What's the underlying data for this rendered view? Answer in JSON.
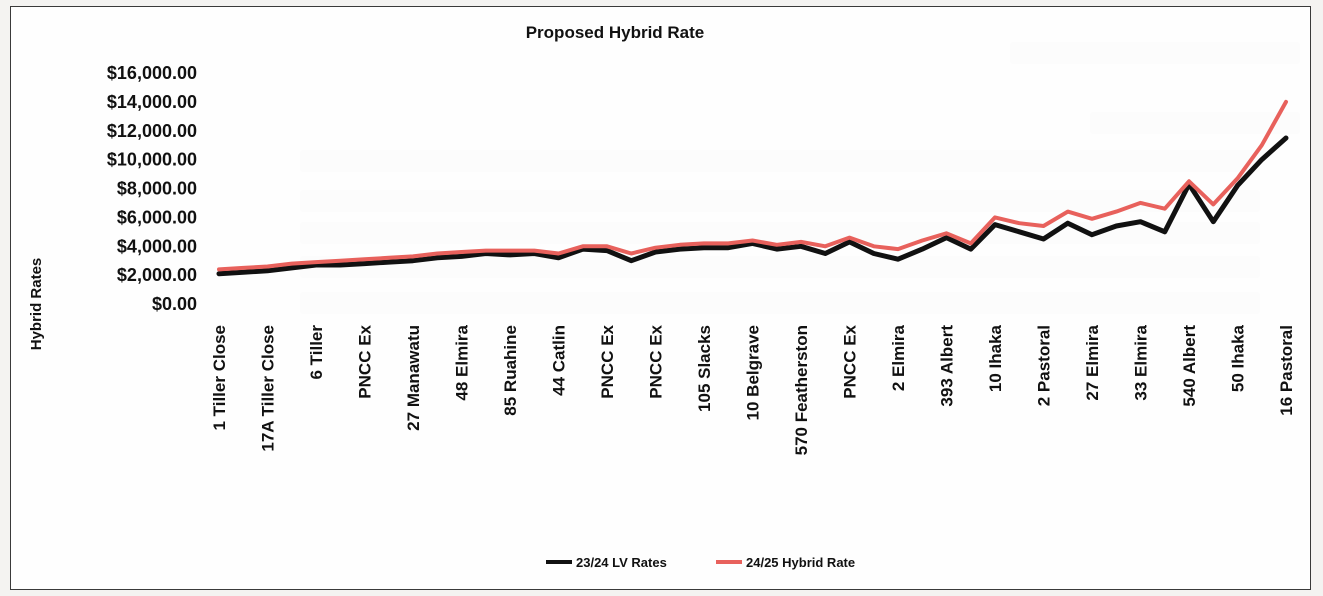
{
  "chart_data": {
    "type": "line",
    "title": "Proposed Hybrid Rate",
    "ylabel": "Hybrid Rates",
    "xlabel": "",
    "ylim": [
      0,
      16000
    ],
    "yticks": [
      0,
      2000,
      4000,
      6000,
      8000,
      10000,
      12000,
      14000,
      16000
    ],
    "ytick_labels": [
      "$0.00",
      "$2,000.00",
      "$4,000.00",
      "$6,000.00",
      "$8,000.00",
      "$10,000.00",
      "$12,000.00",
      "$14,000.00",
      "$16,000.00"
    ],
    "xtick_labels": [
      "1 Tiller Close",
      "17A Tiller Close",
      "6 Tiller",
      "PNCC Ex",
      "27 Manawatu",
      "48 Elmira",
      "85 Ruahine",
      "44 Catlin",
      "PNCC Ex",
      "PNCC Ex",
      "105 Slacks",
      "10 Belgrave",
      "570 Featherston",
      "PNCC Ex",
      "2 Elmira",
      "393 Albert",
      "10 Ihaka",
      "2 Pastoral",
      "27 Elmira",
      "33 Elmira",
      "540 Albert",
      "50 Ihaka",
      "16 Pastoral"
    ],
    "legend_position": "bottom-center",
    "grid": false,
    "x": [
      0,
      0.5,
      1,
      1.5,
      2,
      2.5,
      3,
      3.5,
      4,
      4.5,
      5,
      5.5,
      6,
      6.5,
      7,
      7.5,
      8,
      8.5,
      9,
      9.5,
      10,
      10.5,
      11,
      11.5,
      12,
      12.5,
      13,
      13.5,
      14,
      14.5,
      15,
      15.5,
      16,
      16.5,
      17,
      17.5,
      18,
      18.5,
      19,
      19.5,
      20,
      20.5,
      21,
      21.5,
      22
    ],
    "series": [
      {
        "name": "23/24 LV Rates",
        "color": "#111111",
        "values": [
          2100,
          2200,
          2300,
          2500,
          2700,
          2700,
          2800,
          2900,
          3000,
          3200,
          3300,
          3500,
          3400,
          3500,
          3200,
          3800,
          3700,
          3000,
          3600,
          3800,
          3900,
          3900,
          4200,
          3800,
          4000,
          3500,
          4300,
          3500,
          3100,
          3800,
          4600,
          3800,
          5500,
          5000,
          4500,
          5600,
          4800,
          5400,
          5700,
          5000,
          8300,
          5700,
          8200,
          10000,
          11500
        ]
      },
      {
        "name": "24/25 Hybrid Rate",
        "color": "#e8615c",
        "values": [
          2400,
          2500,
          2600,
          2800,
          2900,
          3000,
          3100,
          3200,
          3300,
          3500,
          3600,
          3700,
          3700,
          3700,
          3500,
          4000,
          4000,
          3500,
          3900,
          4100,
          4200,
          4200,
          4400,
          4100,
          4300,
          4000,
          4600,
          4000,
          3800,
          4400,
          4900,
          4200,
          6000,
          5600,
          5400,
          6400,
          5900,
          6400,
          7000,
          6600,
          8500,
          6900,
          8700,
          11000,
          14000
        ]
      }
    ]
  }
}
